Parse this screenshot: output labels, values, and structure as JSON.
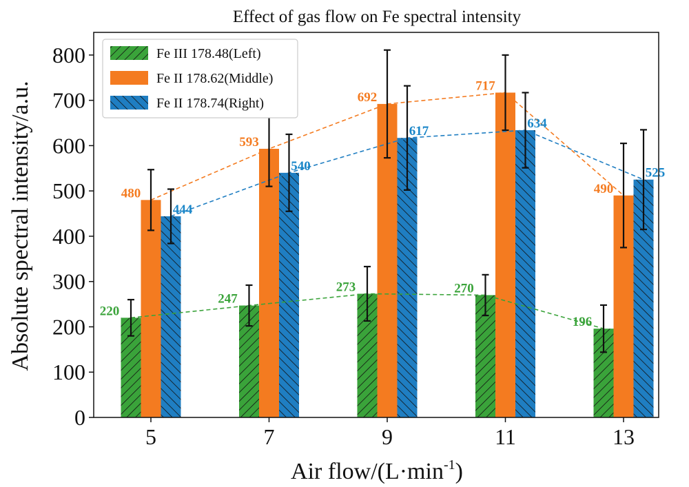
{
  "chart_data": {
    "type": "bar",
    "title": "Effect of gas flow on Fe spectral intensity",
    "xlabel": "Air flow/(L·min",
    "xlabel_sup": "-1",
    "xlabel_suffix": ")",
    "ylabel": "Absolute spectral intensity/a.u.",
    "ylim": [
      0,
      850
    ],
    "yticks": [
      0,
      100,
      200,
      300,
      400,
      500,
      600,
      700,
      800
    ],
    "categories": [
      "5",
      "7",
      "9",
      "11",
      "13"
    ],
    "grid": false,
    "legend_position": "top-left",
    "series": [
      {
        "name": "Fe III 178.48(Left)",
        "values": [
          220,
          247,
          273,
          270,
          196
        ],
        "errors": [
          40,
          45,
          60,
          45,
          52
        ],
        "labels": [
          "220",
          "247",
          "273",
          "270",
          "196"
        ],
        "color": "#3aa33a",
        "label_color": "#3aa33a",
        "hatch": "diagonal-right"
      },
      {
        "name": "Fe II 178.62(Middle)",
        "values": [
          480,
          593,
          692,
          717,
          490
        ],
        "errors": [
          67,
          83,
          119,
          83,
          115
        ],
        "labels": [
          "480",
          "593",
          "692",
          "717",
          "490"
        ],
        "color": "#f47b20",
        "label_color": "#f47b20",
        "hatch": "none"
      },
      {
        "name": "Fe II 178.74(Right)",
        "values": [
          444,
          540,
          617,
          634,
          525
        ],
        "errors": [
          60,
          85,
          115,
          83,
          110
        ],
        "labels": [
          "444",
          "540",
          "617",
          "634",
          "525"
        ],
        "color": "#1f7ec2",
        "label_color": "#1a86c8",
        "hatch": "diagonal-left"
      }
    ]
  }
}
